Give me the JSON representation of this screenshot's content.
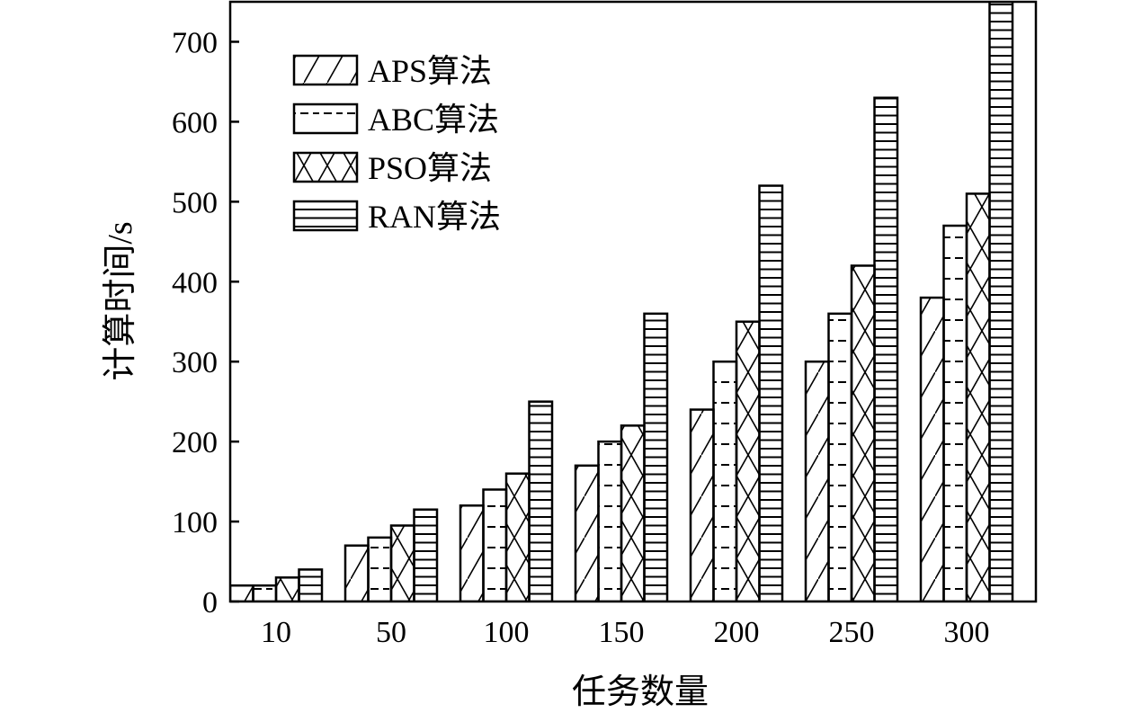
{
  "chart_data": {
    "type": "bar",
    "title": "",
    "xlabel": "任务数量",
    "ylabel": "计算时间/s",
    "categories": [
      "10",
      "50",
      "100",
      "150",
      "200",
      "250",
      "300"
    ],
    "ylim": [
      0,
      750
    ],
    "yticks": [
      "0",
      "100",
      "200",
      "300",
      "400",
      "500",
      "600",
      "700"
    ],
    "grid": false,
    "legend_position": "top-left",
    "series": [
      {
        "name": "APS算法",
        "pattern": "diagonal",
        "values": [
          20,
          70,
          120,
          170,
          240,
          300,
          380
        ]
      },
      {
        "name": "ABC算法",
        "pattern": "dashes",
        "values": [
          20,
          80,
          140,
          200,
          300,
          360,
          470
        ]
      },
      {
        "name": "PSO算法",
        "pattern": "crosshatch",
        "values": [
          30,
          95,
          160,
          220,
          350,
          420,
          510
        ]
      },
      {
        "name": "RAN算法",
        "pattern": "horizontal",
        "values": [
          40,
          115,
          250,
          360,
          520,
          630,
          750
        ]
      }
    ],
    "colors": {
      "line": "#000000",
      "background": "#ffffff"
    }
  }
}
